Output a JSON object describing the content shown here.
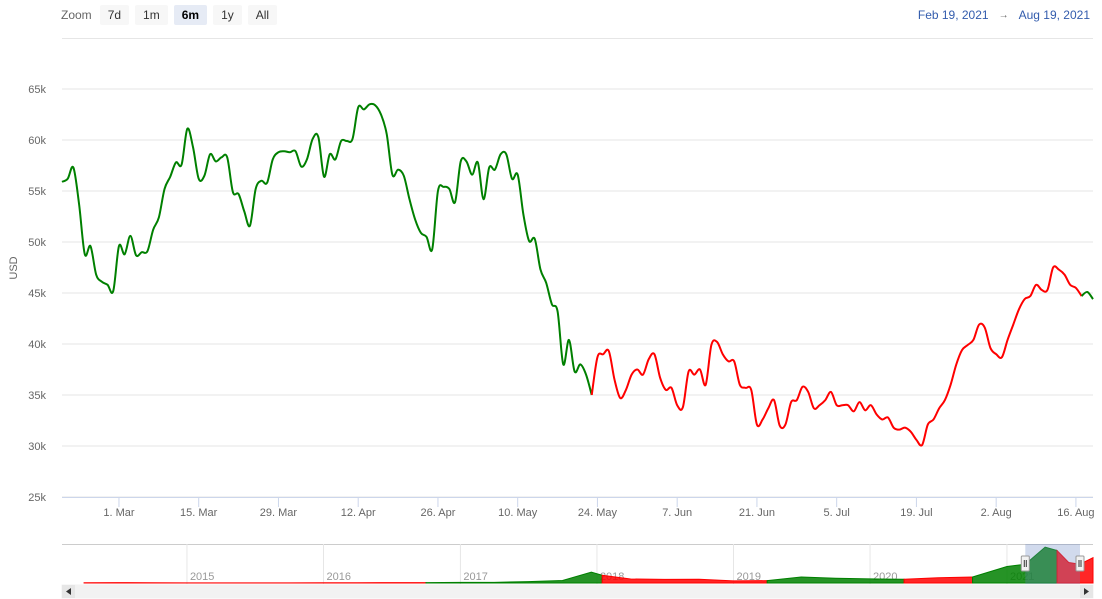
{
  "chart_data": {
    "type": "line",
    "range_selector": {
      "label": "Zoom",
      "buttons": [
        "7d",
        "1m",
        "6m",
        "1y",
        "All"
      ],
      "selected": 2,
      "from": "Feb 19, 2021",
      "arrow": "→",
      "to": "Aug 19, 2021"
    },
    "y_axis_label": "USD",
    "x": [
      "2021-02-19",
      "2021-02-20",
      "2021-02-21",
      "2021-02-22",
      "2021-02-23",
      "2021-02-24",
      "2021-02-25",
      "2021-02-26",
      "2021-02-27",
      "2021-02-28",
      "2021-03-01",
      "2021-03-02",
      "2021-03-03",
      "2021-03-04",
      "2021-03-05",
      "2021-03-06",
      "2021-03-07",
      "2021-03-08",
      "2021-03-09",
      "2021-03-10",
      "2021-03-11",
      "2021-03-12",
      "2021-03-13",
      "2021-03-14",
      "2021-03-15",
      "2021-03-16",
      "2021-03-17",
      "2021-03-18",
      "2021-03-19",
      "2021-03-20",
      "2021-03-21",
      "2021-03-22",
      "2021-03-23",
      "2021-03-24",
      "2021-03-25",
      "2021-03-26",
      "2021-03-27",
      "2021-03-28",
      "2021-03-29",
      "2021-03-30",
      "2021-03-31",
      "2021-04-01",
      "2021-04-02",
      "2021-04-03",
      "2021-04-04",
      "2021-04-05",
      "2021-04-06",
      "2021-04-07",
      "2021-04-08",
      "2021-04-09",
      "2021-04-10",
      "2021-04-11",
      "2021-04-12",
      "2021-04-13",
      "2021-04-14",
      "2021-04-15",
      "2021-04-16",
      "2021-04-17",
      "2021-04-18",
      "2021-04-19",
      "2021-04-20",
      "2021-04-21",
      "2021-04-22",
      "2021-04-23",
      "2021-04-24",
      "2021-04-25",
      "2021-04-26",
      "2021-04-27",
      "2021-04-28",
      "2021-04-29",
      "2021-04-30",
      "2021-05-01",
      "2021-05-02",
      "2021-05-03",
      "2021-05-04",
      "2021-05-05",
      "2021-05-06",
      "2021-05-07",
      "2021-05-08",
      "2021-05-09",
      "2021-05-10",
      "2021-05-11",
      "2021-05-12",
      "2021-05-13",
      "2021-05-14",
      "2021-05-15",
      "2021-05-16",
      "2021-05-17",
      "2021-05-18",
      "2021-05-19",
      "2021-05-20",
      "2021-05-21",
      "2021-05-22",
      "2021-05-23",
      "2021-05-24",
      "2021-05-25",
      "2021-05-26",
      "2021-05-27",
      "2021-05-28",
      "2021-05-29",
      "2021-05-30",
      "2021-05-31",
      "2021-06-01",
      "2021-06-02",
      "2021-06-03",
      "2021-06-04",
      "2021-06-05",
      "2021-06-06",
      "2021-06-07",
      "2021-06-08",
      "2021-06-09",
      "2021-06-10",
      "2021-06-11",
      "2021-06-12",
      "2021-06-13",
      "2021-06-14",
      "2021-06-15",
      "2021-06-16",
      "2021-06-17",
      "2021-06-18",
      "2021-06-19",
      "2021-06-20",
      "2021-06-21",
      "2021-06-22",
      "2021-06-23",
      "2021-06-24",
      "2021-06-25",
      "2021-06-26",
      "2021-06-27",
      "2021-06-28",
      "2021-06-29",
      "2021-06-30",
      "2021-07-01",
      "2021-07-02",
      "2021-07-03",
      "2021-07-04",
      "2021-07-05",
      "2021-07-06",
      "2021-07-07",
      "2021-07-08",
      "2021-07-09",
      "2021-07-10",
      "2021-07-11",
      "2021-07-12",
      "2021-07-13",
      "2021-07-14",
      "2021-07-15",
      "2021-07-16",
      "2021-07-17",
      "2021-07-18",
      "2021-07-19",
      "2021-07-20",
      "2021-07-21",
      "2021-07-22",
      "2021-07-23",
      "2021-07-24",
      "2021-07-25",
      "2021-07-26",
      "2021-07-27",
      "2021-07-28",
      "2021-07-29",
      "2021-07-30",
      "2021-07-31",
      "2021-08-01",
      "2021-08-02",
      "2021-08-03",
      "2021-08-04",
      "2021-08-05",
      "2021-08-06",
      "2021-08-07",
      "2021-08-08",
      "2021-08-09",
      "2021-08-10",
      "2021-08-11",
      "2021-08-12",
      "2021-08-13",
      "2021-08-14",
      "2021-08-15",
      "2021-08-16",
      "2021-08-17",
      "2021-08-18",
      "2021-08-19"
    ],
    "values": [
      55900,
      56200,
      57300,
      53700,
      48800,
      49600,
      46800,
      46100,
      45800,
      45200,
      49600,
      48800,
      50600,
      48700,
      49000,
      49100,
      51200,
      52400,
      55200,
      56400,
      57800,
      57600,
      61100,
      59300,
      56200,
      56500,
      58600,
      57900,
      58300,
      58300,
      54900,
      54700,
      53000,
      51600,
      55200,
      56000,
      55800,
      58100,
      58800,
      58900,
      58800,
      58900,
      57400,
      58100,
      60100,
      60300,
      56400,
      58600,
      58100,
      59900,
      59900,
      60100,
      63200,
      63000,
      63500,
      63400,
      62500,
      60600,
      56600,
      57100,
      56500,
      54200,
      52200,
      50900,
      50500,
      49300,
      55000,
      55400,
      55200,
      53900,
      57900,
      57900,
      56600,
      57800,
      54200,
      57300,
      57100,
      58600,
      58600,
      56200,
      56600,
      52700,
      50100,
      50300,
      47300,
      46000,
      43900,
      43200,
      38000,
      40400,
      37300,
      38000,
      37000,
      35000,
      38700,
      39000,
      39300,
      36500,
      34700,
      35500,
      37000,
      37500,
      37000,
      38500,
      39000,
      36700,
      35500,
      35700,
      34000,
      33800,
      37300,
      37000,
      37500,
      36000,
      39900,
      40200,
      39000,
      38300,
      38300,
      36000,
      35700,
      35500,
      32100,
      32600,
      33700,
      34500,
      32000,
      32100,
      34300,
      34500,
      35800,
      35300,
      33700,
      34000,
      34500,
      35300,
      34000,
      34000,
      34000,
      33400,
      34300,
      33500,
      34000,
      33100,
      32600,
      32800,
      31800,
      31600,
      31800,
      31400,
      30600,
      30100,
      32100,
      32600,
      33700,
      34500,
      36000,
      38000,
      39400,
      39900,
      40400,
      41900,
      41600,
      39600,
      39000,
      38700,
      40400,
      41900,
      43400,
      44400,
      44700,
      45800,
      45300,
      45300,
      47500,
      47300,
      46800,
      45800,
      45500,
      44700,
      45100,
      44400
    ],
    "zones": [
      {
        "until": "2021-05-23",
        "color": "#008000"
      },
      {
        "until": "2021-08-17",
        "color": "#ff0000"
      },
      {
        "color": "#008000"
      }
    ],
    "xlim": [
      "2021-02-19",
      "2021-08-19"
    ],
    "xticks": [
      {
        "value": "2021-03-01",
        "label": "1. Mar"
      },
      {
        "value": "2021-03-15",
        "label": "15. Mar"
      },
      {
        "value": "2021-03-29",
        "label": "29. Mar"
      },
      {
        "value": "2021-04-12",
        "label": "12. Apr"
      },
      {
        "value": "2021-04-26",
        "label": "26. Apr"
      },
      {
        "value": "2021-05-10",
        "label": "10. May"
      },
      {
        "value": "2021-05-24",
        "label": "24. May"
      },
      {
        "value": "2021-06-07",
        "label": "7. Jun"
      },
      {
        "value": "2021-06-21",
        "label": "21. Jun"
      },
      {
        "value": "2021-07-05",
        "label": "5. Jul"
      },
      {
        "value": "2021-07-19",
        "label": "19. Jul"
      },
      {
        "value": "2021-08-02",
        "label": "2. Aug"
      },
      {
        "value": "2021-08-16",
        "label": "16. Aug"
      }
    ],
    "ylim": [
      25000,
      70000
    ],
    "yticks": [
      {
        "value": 25000,
        "label": "25k"
      },
      {
        "value": 30000,
        "label": "30k"
      },
      {
        "value": 35000,
        "label": "35k"
      },
      {
        "value": 40000,
        "label": "40k"
      },
      {
        "value": 45000,
        "label": "45k"
      },
      {
        "value": 50000,
        "label": "50k"
      },
      {
        "value": 55000,
        "label": "55k"
      },
      {
        "value": 60000,
        "label": "60k"
      },
      {
        "value": 65000,
        "label": "65k"
      }
    ],
    "grid": true,
    "navigator": {
      "type": "area",
      "x": [
        "2014-04-01",
        "2014-07-01",
        "2014-10-01",
        "2015-01-01",
        "2015-04-01",
        "2015-07-01",
        "2015-10-01",
        "2016-01-01",
        "2016-04-01",
        "2016-07-01",
        "2016-10-01",
        "2017-01-01",
        "2017-04-01",
        "2017-07-01",
        "2017-10-01",
        "2017-12-17",
        "2018-01-15",
        "2018-04-01",
        "2018-07-01",
        "2018-10-01",
        "2019-01-01",
        "2019-04-01",
        "2019-07-01",
        "2019-10-01",
        "2020-01-01",
        "2020-04-01",
        "2020-07-01",
        "2020-10-01",
        "2021-01-01",
        "2021-02-19",
        "2021-04-13",
        "2021-05-15",
        "2021-06-15",
        "2021-07-15",
        "2021-08-19"
      ],
      "values": [
        450,
        620,
        380,
        220,
        240,
        280,
        310,
        430,
        420,
        670,
        610,
        990,
        1080,
        2500,
        4400,
        19000,
        13600,
        7000,
        6400,
        6600,
        3800,
        4100,
        10500,
        8300,
        7200,
        6600,
        9200,
        10600,
        29000,
        33000,
        63000,
        57000,
        36000,
        33000,
        44400
      ],
      "zones": [
        {
          "until": "2016-10-01",
          "color": "#ff0000"
        },
        {
          "until": "2018-01-15",
          "color": "#008000"
        },
        {
          "until": "2019-04-01",
          "color": "#ff0000"
        },
        {
          "until": "2020-04-01",
          "color": "#008000"
        },
        {
          "until": "2020-10-01",
          "color": "#ff0000"
        },
        {
          "until": "2021-05-15",
          "color": "#008000"
        },
        {
          "color": "#ff0000"
        }
      ],
      "xlim": [
        "2014-02-01",
        "2021-08-19"
      ],
      "ylim": [
        0,
        65000
      ],
      "xticks": [
        {
          "value": "2015-01-01",
          "label": "2015"
        },
        {
          "value": "2016-01-01",
          "label": "2016"
        },
        {
          "value": "2017-01-01",
          "label": "2017"
        },
        {
          "value": "2018-01-01",
          "label": "2018"
        },
        {
          "value": "2019-01-01",
          "label": "2019"
        },
        {
          "value": "2020-01-01",
          "label": "2020"
        },
        {
          "value": "2021-01-01",
          "label": "2021"
        }
      ]
    }
  }
}
